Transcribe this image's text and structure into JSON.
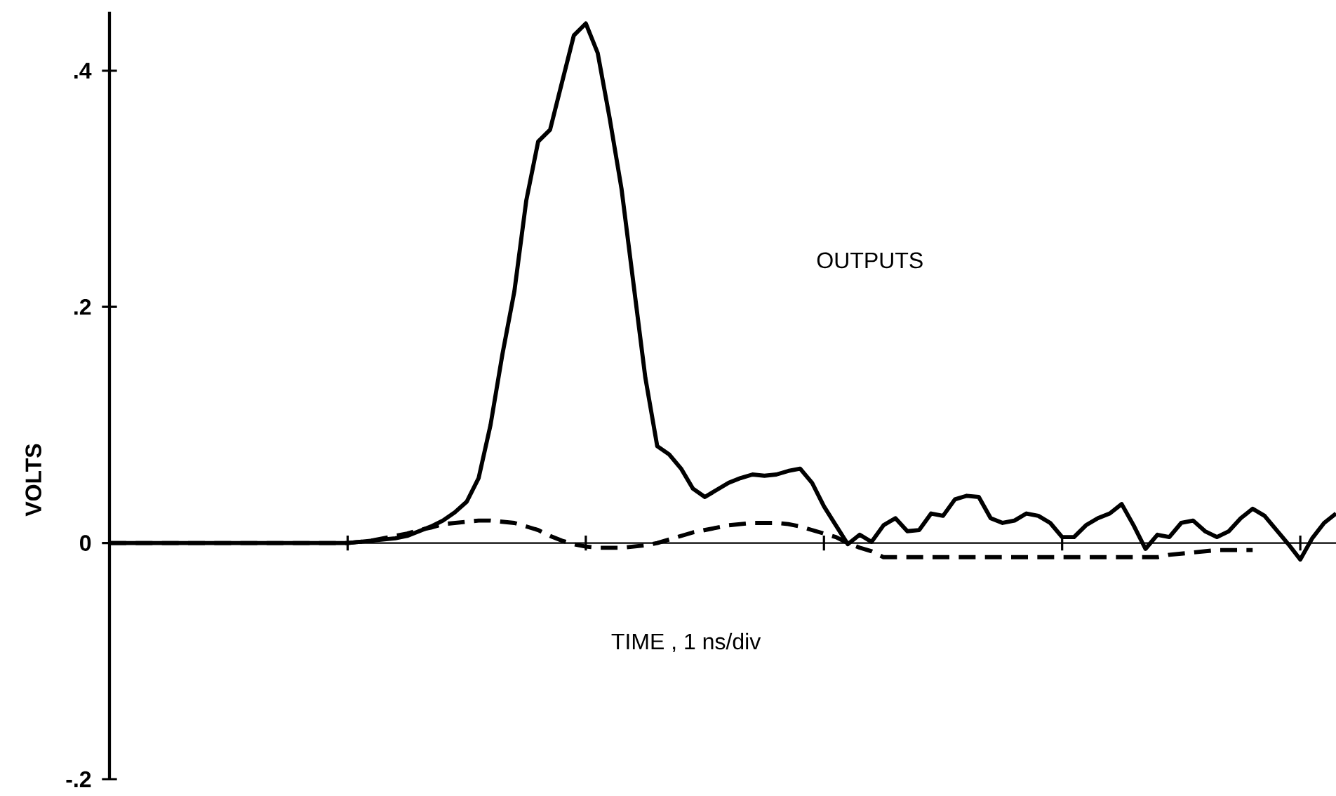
{
  "chart_data": {
    "type": "line",
    "xlabel": "TIME , 1 ns/div",
    "ylabel": "VOLTS",
    "annotations": [
      "OUTPUTS"
    ],
    "ylim": [
      -0.2,
      0.45
    ],
    "yticks": [
      {
        "value": 0.4,
        "label": ".4"
      },
      {
        "value": 0.2,
        "label": ".2"
      },
      0,
      {
        "value": -0.2,
        "label": "-.2"
      }
    ],
    "categories": [
      null,
      null,
      null,
      null,
      null,
      null,
      null,
      null,
      null,
      null,
      null,
      null,
      null,
      null,
      null,
      null,
      null,
      null,
      null,
      null,
      null,
      null,
      null,
      null,
      null,
      null,
      null,
      null,
      null,
      null,
      null,
      null,
      null,
      null,
      null,
      null,
      null,
      null,
      null,
      null,
      null,
      null,
      null,
      null,
      null,
      null,
      null,
      null,
      null,
      null,
      null,
      null,
      null,
      null,
      null,
      null,
      null,
      null,
      null,
      null,
      null,
      null,
      null,
      null,
      null,
      null,
      null,
      null,
      null,
      null,
      null,
      null,
      null,
      null,
      null,
      null,
      null,
      null,
      null,
      null,
      null,
      null,
      null,
      null,
      null,
      null,
      null,
      null,
      null,
      null,
      null,
      null,
      null,
      null,
      null,
      null,
      null,
      null,
      null,
      null,
      null,
      null,
      null,
      null
    ],
    "series": [
      {
        "color": "#000000",
        "line_style": "solid",
        "values": [
          0,
          0,
          0,
          0,
          0,
          0,
          0,
          0,
          0,
          0,
          0,
          0,
          0,
          0,
          0,
          0,
          0,
          0,
          0,
          0,
          0,
          0.001,
          0.002,
          0.003,
          0.004,
          0.006,
          0.01,
          0.014,
          0.019,
          0.026,
          0.035,
          0.055,
          0.1,
          0.16,
          0.213,
          0.29,
          0.34,
          0.35,
          0.39,
          0.43,
          0.44,
          0.415,
          0.36,
          0.3,
          0.22,
          0.14,
          0.082,
          0.075,
          0.063,
          0.046,
          0.039,
          0.045,
          0.051,
          0.055,
          0.058,
          0.057,
          0.058,
          0.061,
          0.063,
          0.051,
          0.031,
          0.015,
          -0.001,
          0.007,
          0.001,
          0.015,
          0.021,
          0.01,
          0.011,
          0.025,
          0.023,
          0.037,
          0.04,
          0.039,
          0.021,
          0.017,
          0.019,
          0.025,
          0.023,
          0.017,
          0.005,
          0.005,
          0.015,
          0.021,
          0.025,
          0.033,
          0.015,
          -0.005,
          0.007,
          0.005,
          0.017,
          0.019,
          0.01,
          0.005,
          0.01,
          0.021,
          0.029,
          0.023,
          0.011,
          -0.001,
          -0.014,
          0.004,
          0.017,
          0.025
        ]
      },
      {
        "color": "#000000",
        "line_style": "dashed",
        "values": [
          0,
          0,
          0,
          0,
          0,
          0,
          0,
          0,
          0,
          0,
          0,
          0,
          0,
          0,
          0,
          0,
          0,
          0,
          0,
          0,
          0,
          0.001,
          0.002,
          0.004,
          0.006,
          0.008,
          0.011,
          0.013,
          0.016,
          0.017,
          0.018,
          0.019,
          0.019,
          0.018,
          0.017,
          0.014,
          0.011,
          0.006,
          0.002,
          -0.001,
          -0.003,
          -0.004,
          -0.004,
          -0.004,
          -0.003,
          -0.002,
          0.0,
          0.003,
          0.006,
          0.009,
          0.011,
          0.013,
          0.015,
          0.016,
          0.017,
          0.017,
          0.017,
          0.016,
          0.014,
          0.011,
          0.008,
          0.005,
          0.0,
          -0.004,
          -0.007,
          -0.012,
          -0.012,
          -0.012,
          -0.012,
          -0.012,
          -0.012,
          -0.012,
          -0.012,
          -0.012,
          -0.012,
          -0.012,
          -0.012,
          -0.012,
          -0.012,
          -0.012,
          -0.012,
          -0.012,
          -0.012,
          -0.012,
          -0.012,
          -0.012,
          -0.012,
          -0.012,
          -0.012,
          -0.01,
          -0.009,
          -0.008,
          -0.007,
          -0.006,
          -0.006,
          -0.006,
          -0.006,
          null,
          null,
          null,
          null,
          null,
          null,
          null
        ]
      }
    ]
  }
}
